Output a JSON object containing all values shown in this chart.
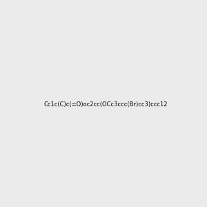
{
  "smiles": "Cc1c(C)c(=O)oc2cc(OCc3ccc(Br)cc3)ccc12",
  "title": "",
  "bg_color": "#ebebeb",
  "bond_color": "#2d6e6e",
  "oxygen_color": "#ff0000",
  "bromine_color": "#cc6600",
  "figsize": [
    3.0,
    3.0
  ],
  "dpi": 100
}
